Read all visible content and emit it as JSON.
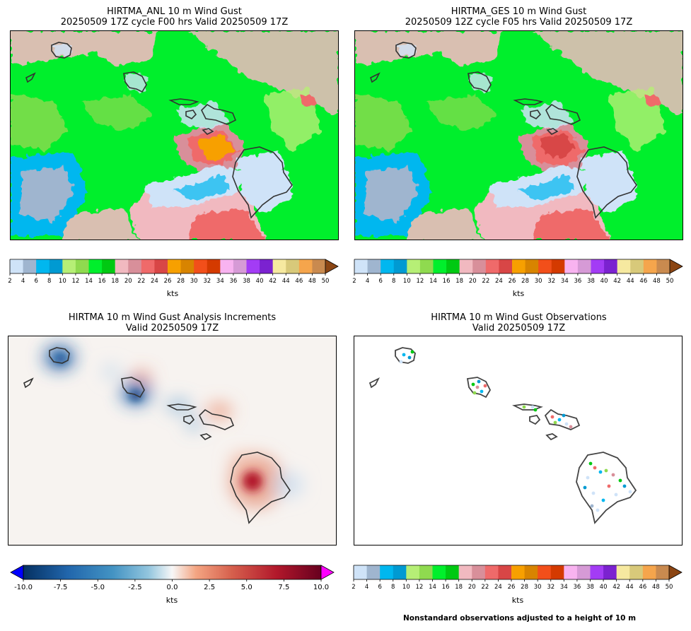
{
  "panels": {
    "anl": {
      "title_line1": "HIRTMA_ANL 10 m Wind Gust",
      "title_line2": "20250509 17Z cycle F00 hrs Valid 20250509 17Z"
    },
    "ges": {
      "title_line1": "HIRTMA_GES 10 m Wind Gust",
      "title_line2": "20250509 12Z cycle F05 hrs Valid 20250509 17Z"
    },
    "inc": {
      "title_line1": "HIRTMA 10 m Wind Gust Analysis Increments",
      "title_line2": "Valid 20250509 17Z"
    },
    "obs": {
      "title_line1": "HIRTMA 10 m Wind Gust Observations",
      "title_line2": "Valid 20250509 17Z"
    }
  },
  "colorbars": {
    "units": "kts",
    "gust_ticks": [
      "2",
      "4",
      "6",
      "8",
      "10",
      "12",
      "14",
      "16",
      "18",
      "20",
      "22",
      "24",
      "26",
      "28",
      "30",
      "32",
      "34",
      "36",
      "38",
      "40",
      "42",
      "44",
      "46",
      "48",
      "50"
    ],
    "gust_colors": [
      "#cfe3f8",
      "#9fb5cf",
      "#00b7ef",
      "#009ad2",
      "#b6ef76",
      "#8fda4f",
      "#00ef2c",
      "#00c912",
      "#f1b9c0",
      "#d88f9a",
      "#ef6a6a",
      "#d84646",
      "#f7a000",
      "#d88400",
      "#f24f1a",
      "#d43a00",
      "#f8b3f0",
      "#d69ad6",
      "#a33cf5",
      "#7b22d0",
      "#f6e9a0",
      "#d8c97a",
      "#f5a54c",
      "#c98a4f"
    ],
    "gust_extend_color": "#8b4513",
    "inc_ticks": [
      "-10.0",
      "-7.5",
      "-5.0",
      "-2.5",
      "0.0",
      "2.5",
      "5.0",
      "7.5",
      "10.0"
    ],
    "inc_min_color": "#0000ff",
    "inc_max_color": "#ff00ff"
  },
  "footnote": "Nonstandard observations adjusted to a height of 10 m"
}
